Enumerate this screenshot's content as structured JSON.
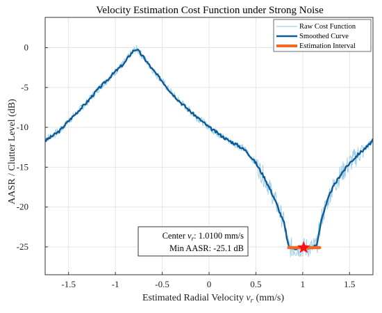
{
  "chart_data": {
    "type": "line",
    "title": "Velocity Estimation Cost Function under Strong Noise",
    "xlabel": "Estimated Radial Velocity",
    "xlabel_var": "v",
    "xlabel_sub": "r",
    "xlabel_unit": "(mm/s)",
    "ylabel": "AASR / Clutter Level (dB)",
    "xlim": [
      -1.75,
      1.75
    ],
    "ylim": [
      -28.5,
      3.8
    ],
    "xticks": [
      -1.5,
      -1,
      -0.5,
      0,
      0.5,
      1,
      1.5
    ],
    "xtick_labels": [
      "-1.5",
      "-1",
      "-0.5",
      "0",
      "0.5",
      "1",
      "1.5"
    ],
    "yticks": [
      0,
      -5,
      -10,
      -15,
      -20,
      -25
    ],
    "ytick_labels": [
      "0",
      "-5",
      "-10",
      "-15",
      "-20",
      "-25"
    ],
    "grid": true,
    "legend_position": "top-right",
    "series": [
      {
        "name": "Raw Cost Function",
        "color": "#9fd0e8",
        "style": "thin-noisy",
        "x": [
          -1.75,
          -1.6,
          -1.5,
          -1.4,
          -1.3,
          -1.2,
          -1.1,
          -1.0,
          -0.9,
          -0.85,
          -0.8,
          -0.77,
          -0.7,
          -0.6,
          -0.5,
          -0.4,
          -0.3,
          -0.2,
          -0.1,
          0.0,
          0.1,
          0.2,
          0.3,
          0.4,
          0.5,
          0.6,
          0.7,
          0.8,
          0.85,
          0.9,
          1.0,
          1.1,
          1.15,
          1.2,
          1.3,
          1.4,
          1.5,
          1.6,
          1.7,
          1.75
        ],
        "y": [
          -11.5,
          -10.5,
          -9.2,
          -8.0,
          -6.8,
          -5.4,
          -4.2,
          -3.0,
          -1.8,
          -1.0,
          -0.3,
          -0.2,
          -1.2,
          -2.8,
          -4.2,
          -5.7,
          -6.9,
          -8.0,
          -9.0,
          -10.0,
          -10.8,
          -11.6,
          -12.2,
          -13.0,
          -14.5,
          -16.5,
          -19.0,
          -22.0,
          -25.0,
          -25.2,
          -25.1,
          -25.1,
          -24.8,
          -21.5,
          -18.0,
          -16.0,
          -14.5,
          -13.3,
          -12.3,
          -11.6
        ]
      },
      {
        "name": "Smoothed Curve",
        "color": "#0e5a96",
        "style": "thick",
        "x": [
          -1.75,
          -1.6,
          -1.5,
          -1.4,
          -1.3,
          -1.2,
          -1.1,
          -1.0,
          -0.9,
          -0.85,
          -0.8,
          -0.77,
          -0.7,
          -0.6,
          -0.5,
          -0.4,
          -0.3,
          -0.2,
          -0.1,
          0.0,
          0.1,
          0.2,
          0.3,
          0.4,
          0.5,
          0.6,
          0.7,
          0.8,
          0.85,
          0.9,
          1.0,
          1.1,
          1.15,
          1.2,
          1.3,
          1.4,
          1.5,
          1.6,
          1.7,
          1.75
        ],
        "y": [
          -11.7,
          -10.5,
          -9.2,
          -8.0,
          -6.8,
          -5.4,
          -4.2,
          -3.0,
          -1.9,
          -1.0,
          -0.3,
          -0.2,
          -1.2,
          -2.8,
          -4.2,
          -5.7,
          -6.9,
          -8.0,
          -9.0,
          -10.0,
          -10.8,
          -11.6,
          -12.2,
          -13.0,
          -14.5,
          -16.5,
          -19.0,
          -22.0,
          -25.0,
          -25.2,
          -25.1,
          -25.1,
          -24.8,
          -21.5,
          -18.0,
          -16.0,
          -14.5,
          -13.3,
          -12.3,
          -11.6
        ]
      },
      {
        "name": "Estimation Interval",
        "color": "#f26a22",
        "style": "interval",
        "x": [
          0.85,
          1.18
        ],
        "y": [
          -25.1,
          -25.1
        ]
      }
    ],
    "marker": {
      "x": 1.01,
      "y": -25.1,
      "color": "#ff1010",
      "shape": "star"
    },
    "annotation": {
      "line1_prefix": "Center ",
      "line1_var": "v",
      "line1_sub": "r",
      "line1_value": ": 1.0100 mm/s",
      "line2": "Min AASR: -25.1 dB"
    }
  }
}
